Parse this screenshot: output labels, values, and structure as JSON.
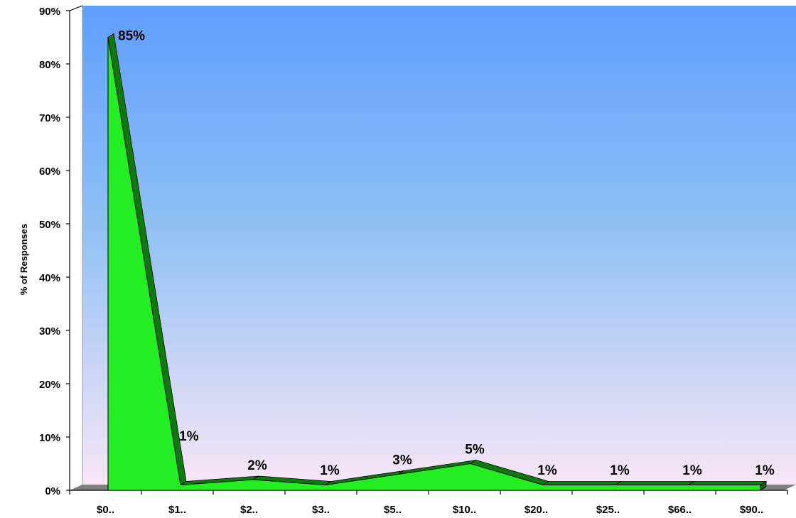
{
  "chart_data": {
    "type": "area",
    "categories": [
      "$0..",
      "$1..",
      "$2..",
      "$3..",
      "$5..",
      "$10..",
      "$20..",
      "$25..",
      "$66..",
      "$90.."
    ],
    "series": [
      {
        "values": [
          85,
          1,
          2,
          1,
          3,
          5,
          1,
          1,
          1,
          1
        ]
      }
    ],
    "data_labels": [
      "85%",
      "1%",
      "2%",
      "1%",
      "3%",
      "5%",
      "1%",
      "1%",
      "1%",
      "1%"
    ],
    "y_ticks": [
      "0%",
      "10%",
      "20%",
      "30%",
      "40%",
      "50%",
      "60%",
      "70%",
      "80%",
      "90%"
    ],
    "ylim": [
      0,
      90
    ],
    "xlabel": "",
    "ylabel": "% of Responses",
    "title": "",
    "style": "3d",
    "grid": false,
    "legend": "none",
    "colors": {
      "area_front": "#22ee22",
      "area_top": "#0c7a0c",
      "area_side": "#0a5f0a",
      "bg_top": "#5f9eff",
      "bg_mid": "#8ec0f4",
      "bg_bottom": "#f8e6f7",
      "floor": "#808080"
    }
  }
}
